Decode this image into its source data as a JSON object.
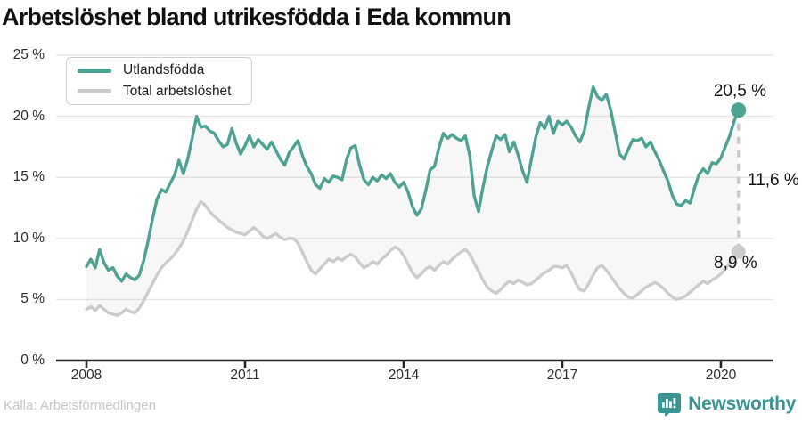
{
  "title": "Arbetslöshet bland utrikesfödda i Eda kommun",
  "source": "Källa: Arbetsförmedlingen",
  "branding": {
    "name": "Newsworthy",
    "color": "#3a9493"
  },
  "annotations": {
    "end_foreign": "20,5 %",
    "gap": "11,6 %",
    "end_total": "8,9 %"
  },
  "legend": [
    {
      "label": "Utlandsfödda",
      "color": "#4ea293"
    },
    {
      "label": "Total arbetslöshet",
      "color": "#cccccc"
    }
  ],
  "chart_data": {
    "type": "line",
    "title": "Arbetslöshet bland utrikesfödda i Eda kommun",
    "x_unit": "year-month",
    "x_start": 2008.0,
    "x_step_months": 1,
    "x_end": 2020.4167,
    "ylim": [
      0,
      25
    ],
    "grid": "horizontal",
    "legend_position": "top-left-inside",
    "x_ticks": [
      2008,
      2011,
      2014,
      2017,
      2020
    ],
    "x_tick_labels": [
      "2008",
      "2011",
      "2014",
      "2017",
      "2020"
    ],
    "y_ticks": [
      25,
      20,
      15,
      10,
      5,
      0
    ],
    "y_tick_labels": [
      "25 %",
      "20 %",
      "15 %",
      "10 %",
      "5 %",
      "0 %"
    ],
    "end_values": {
      "foreign_born": 20.5,
      "total": 8.9,
      "difference": 11.6
    },
    "series": [
      {
        "name": "Utlandsfödda",
        "color": "#4ea293",
        "values": [
          7.7,
          8.3,
          7.6,
          9.1,
          8.0,
          7.4,
          7.6,
          6.9,
          6.5,
          7.1,
          6.8,
          6.6,
          7.0,
          8.2,
          9.8,
          11.6,
          13.2,
          14.0,
          13.8,
          14.5,
          15.2,
          16.4,
          15.3,
          16.5,
          18.2,
          20.0,
          19.1,
          19.2,
          18.8,
          18.6,
          18.0,
          17.5,
          17.7,
          19.0,
          17.8,
          16.9,
          17.6,
          18.4,
          17.5,
          18.1,
          17.7,
          17.3,
          17.9,
          17.2,
          16.5,
          16.0,
          17.0,
          17.5,
          18.0,
          16.8,
          15.9,
          15.3,
          14.4,
          14.1,
          14.9,
          14.6,
          15.1,
          15.0,
          14.8,
          16.4,
          17.4,
          17.6,
          16.0,
          14.8,
          14.4,
          15.0,
          14.7,
          15.2,
          14.9,
          15.3,
          14.6,
          14.2,
          14.6,
          13.8,
          12.6,
          11.9,
          12.4,
          13.9,
          15.6,
          15.9,
          17.4,
          18.6,
          18.2,
          18.5,
          18.2,
          18.0,
          18.4,
          16.8,
          13.5,
          12.2,
          14.2,
          15.9,
          17.2,
          18.4,
          18.1,
          18.5,
          17.1,
          17.9,
          16.8,
          15.5,
          14.6,
          16.5,
          18.3,
          19.5,
          19.0,
          20.0,
          18.6,
          19.6,
          19.3,
          19.6,
          19.1,
          18.4,
          17.9,
          18.8,
          20.7,
          22.4,
          21.6,
          21.3,
          21.8,
          20.5,
          18.7,
          16.9,
          16.5,
          17.3,
          18.1,
          18.0,
          18.2,
          17.5,
          17.9,
          17.1,
          16.4,
          15.5,
          14.7,
          13.5,
          12.8,
          12.7,
          13.1,
          12.9,
          14.1,
          15.2,
          15.7,
          15.3,
          16.2,
          16.1,
          16.6,
          17.5,
          18.4,
          19.6,
          20.5
        ]
      },
      {
        "name": "Total arbetslöshet",
        "color": "#cccccc",
        "values": [
          4.2,
          4.4,
          4.1,
          4.5,
          4.2,
          3.9,
          3.8,
          3.7,
          3.9,
          4.2,
          4.0,
          3.9,
          4.3,
          4.9,
          5.6,
          6.3,
          7.0,
          7.6,
          8.0,
          8.3,
          8.7,
          9.2,
          9.8,
          10.6,
          11.5,
          12.4,
          13.0,
          12.7,
          12.2,
          11.8,
          11.5,
          11.2,
          10.9,
          10.7,
          10.5,
          10.4,
          10.3,
          10.6,
          10.9,
          10.6,
          10.2,
          10.0,
          10.2,
          10.4,
          10.1,
          9.9,
          10.0,
          10.0,
          9.6,
          8.9,
          8.1,
          7.4,
          7.1,
          7.5,
          7.9,
          8.3,
          8.1,
          8.4,
          8.2,
          8.5,
          8.7,
          8.5,
          8.0,
          7.6,
          7.8,
          8.1,
          7.9,
          8.3,
          8.6,
          9.0,
          9.3,
          9.1,
          8.6,
          7.9,
          7.2,
          6.8,
          7.1,
          7.5,
          7.7,
          7.4,
          7.8,
          8.1,
          7.9,
          8.3,
          8.6,
          8.9,
          9.1,
          8.7,
          8.0,
          7.3,
          6.6,
          6.0,
          5.7,
          5.5,
          5.8,
          6.2,
          6.5,
          6.3,
          6.6,
          6.4,
          6.2,
          6.3,
          6.6,
          6.9,
          7.2,
          7.4,
          7.7,
          7.7,
          7.6,
          7.8,
          7.2,
          6.4,
          5.8,
          5.7,
          6.3,
          7.0,
          7.6,
          7.8,
          7.4,
          6.9,
          6.4,
          5.9,
          5.5,
          5.2,
          5.1,
          5.4,
          5.7,
          6.0,
          6.2,
          6.4,
          6.2,
          5.9,
          5.5,
          5.2,
          5.0,
          5.1,
          5.3,
          5.6,
          5.9,
          6.2,
          6.5,
          6.3,
          6.6,
          6.8,
          7.1,
          7.5,
          8.0,
          8.5,
          8.9
        ]
      }
    ],
    "colors": {
      "band_fill": "rgba(0,0,0,0.033)",
      "gridline": "#e6e6e6",
      "axis": "#222222",
      "dashed_connector": "#c9c9c9"
    }
  }
}
